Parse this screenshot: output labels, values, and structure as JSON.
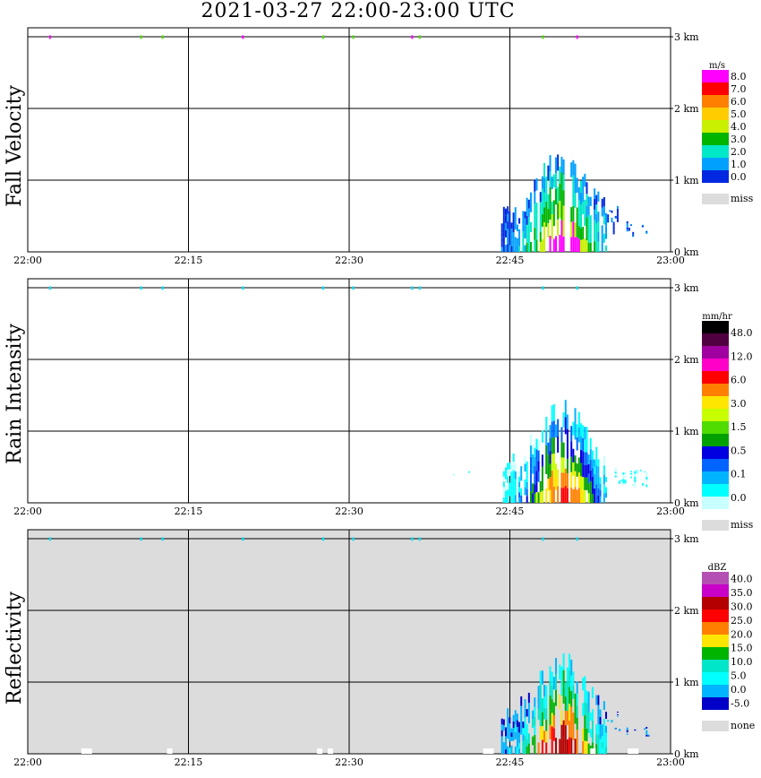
{
  "title": "2021-03-27   22:00-23:00 UTC",
  "x_ticks": [
    "22:00",
    "22:15",
    "22:30",
    "22:45",
    "23:00"
  ],
  "y_ticks": [
    "0 km",
    "1 km",
    "2 km",
    "3 km"
  ],
  "panels": [
    {
      "name": "fall-velocity",
      "ylabel": "Fall Velocity",
      "background": "#ffffff",
      "legend": {
        "unit": "m/s",
        "labels": [
          "8.0",
          "7.0",
          "6.0",
          "5.0",
          "4.0",
          "3.0",
          "2.0",
          "1.0",
          "0.0"
        ],
        "colors": [
          "#ff00ff",
          "#ff0000",
          "#ff7f00",
          "#ffcc00",
          "#c8f000",
          "#00b400",
          "#00e8c8",
          "#00a0ff",
          "#0028e0"
        ],
        "missing_label": "miss",
        "missing_color": "#dcdcdc"
      }
    },
    {
      "name": "rain-intensity",
      "ylabel": "Rain Intensity",
      "background": "#ffffff",
      "legend": {
        "unit": "mm/hr",
        "labels": [
          "48.0",
          "12.0",
          "6.0",
          "3.0",
          "1.5",
          "0.5",
          "0.1",
          "0.0"
        ],
        "colors": [
          "#000000",
          "#500040",
          "#a000a0",
          "#ff00c8",
          "#ff0000",
          "#ff8000",
          "#ffe600",
          "#c8ff00",
          "#50dc00",
          "#00a000",
          "#0000e0",
          "#0064ff",
          "#00b4ff",
          "#00ffff",
          "#c8ffff"
        ],
        "missing_label": "miss",
        "missing_color": "#dcdcdc"
      }
    },
    {
      "name": "reflectivity",
      "ylabel": "Reflectivity",
      "background": "#dcdcdc",
      "legend": {
        "unit": "dBZ",
        "labels": [
          "40.0",
          "35.0",
          "30.0",
          "25.0",
          "20.0",
          "15.0",
          "10.0",
          "5.0",
          "0.0",
          "-5.0"
        ],
        "colors": [
          "#b450b4",
          "#c800c8",
          "#b40000",
          "#ff0000",
          "#ff8000",
          "#ffe600",
          "#00b400",
          "#00e6c8",
          "#00ffff",
          "#00b4ff",
          "#0000c8"
        ],
        "missing_label": "none",
        "missing_color": "#dcdcdc"
      }
    }
  ],
  "chart_data": {
    "type": "heatmap",
    "title": "2021-03-27   22:00-23:00 UTC",
    "x_range": [
      "22:00",
      "23:00"
    ],
    "y_range_km": [
      0,
      3.5
    ],
    "series": [
      {
        "name": "Fall Velocity",
        "unit": "m/s",
        "echo": {
          "x_start": "22:40",
          "x_end": "22:58",
          "top_km": 1.2,
          "max_value": 5.0
        },
        "height_band_km": 3.0
      },
      {
        "name": "Rain Intensity",
        "unit": "mm/hr",
        "echo": {
          "x_start": "22:40",
          "x_end": "22:58",
          "top_km": 1.2,
          "max_value": 6.0
        },
        "height_band_km": 3.0
      },
      {
        "name": "Reflectivity",
        "unit": "dBZ",
        "echo": {
          "x_start": "22:40",
          "x_end": "22:58",
          "top_km": 1.2,
          "max_value": 30.0
        },
        "height_band_km": 3.0
      }
    ]
  }
}
